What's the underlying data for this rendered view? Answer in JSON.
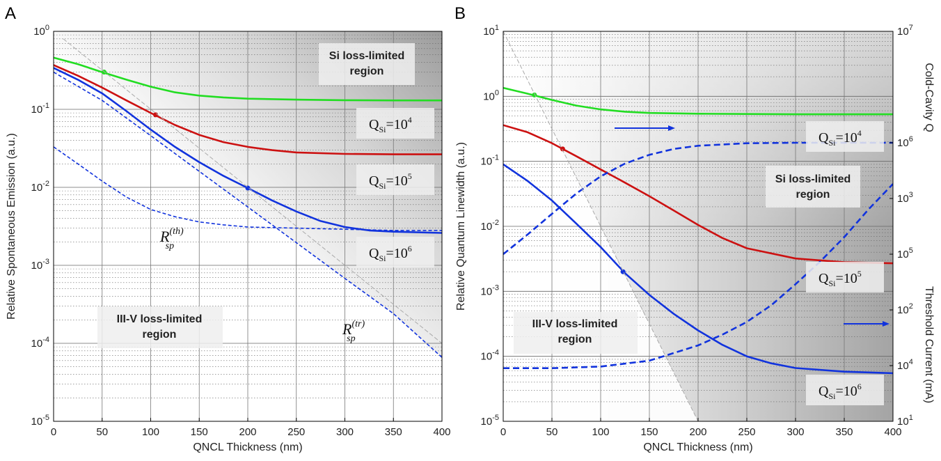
{
  "chart_data": [
    {
      "panel_letter": "A",
      "type": "line",
      "title": "",
      "xlabel": "QNCL Thickness (nm)",
      "ylabel": "Relative Spontaneous Emission (a.u.)",
      "xlim": [
        0,
        400
      ],
      "ylim": [
        1e-05,
        1
      ],
      "yscale": "log",
      "grid": true,
      "xticks": [
        "0",
        "50",
        "100",
        "150",
        "200",
        "250",
        "300",
        "350",
        "400"
      ],
      "yticks": [
        {
          "base": "10",
          "exp": "0"
        },
        {
          "base": "10",
          "exp": "-1"
        },
        {
          "base": "10",
          "exp": "-2"
        },
        {
          "base": "10",
          "exp": "-3"
        },
        {
          "base": "10",
          "exp": "-4"
        },
        {
          "base": "10",
          "exp": "-5"
        }
      ],
      "region_labels": {
        "si": [
          "Si loss-limited",
          "region"
        ],
        "iiiv": [
          "III-V loss-limited",
          "region"
        ]
      },
      "annotations": {
        "q4": {
          "base": "Q",
          "sub": "Si",
          "main": "=10",
          "sup": "4"
        },
        "q5": {
          "base": "Q",
          "sub": "Si",
          "main": "=10",
          "sup": "5"
        },
        "q6": {
          "base": "Q",
          "sub": "Si",
          "main": "=10",
          "sup": "6"
        },
        "rth": {
          "base": "R",
          "sub": "sp",
          "sup": "(th)"
        },
        "rtr": {
          "base": "R",
          "sub": "sp",
          "sup": "(tr)"
        }
      },
      "series": [
        {
          "key": "q4",
          "color": "#22dd22",
          "style": "solid",
          "x": [
            0,
            25,
            50,
            75,
            100,
            125,
            150,
            175,
            200,
            250,
            300,
            350,
            400
          ],
          "y": [
            0.46,
            0.38,
            0.3,
            0.24,
            0.195,
            0.165,
            0.15,
            0.142,
            0.137,
            0.133,
            0.131,
            0.13,
            0.13
          ],
          "marker": [
            52,
            0.3
          ]
        },
        {
          "key": "q5",
          "color": "#cc1111",
          "style": "solid",
          "x": [
            0,
            25,
            50,
            75,
            100,
            125,
            150,
            175,
            200,
            225,
            250,
            300,
            350,
            400
          ],
          "y": [
            0.37,
            0.27,
            0.19,
            0.13,
            0.09,
            0.063,
            0.047,
            0.038,
            0.033,
            0.03,
            0.028,
            0.0268,
            0.0265,
            0.0265
          ],
          "marker": [
            105,
            0.085
          ]
        },
        {
          "key": "q6",
          "color": "#1133dd",
          "style": "solid",
          "x": [
            0,
            25,
            50,
            75,
            100,
            125,
            150,
            175,
            200,
            225,
            250,
            275,
            300,
            325,
            350,
            400
          ],
          "y": [
            0.34,
            0.24,
            0.16,
            0.095,
            0.055,
            0.033,
            0.021,
            0.014,
            0.0098,
            0.0068,
            0.0049,
            0.0037,
            0.0031,
            0.0028,
            0.0027,
            0.0026
          ],
          "marker": [
            200,
            0.0098
          ]
        },
        {
          "key": "rth",
          "color": "#1133dd",
          "style": "dashed",
          "x": [
            0,
            25,
            50,
            75,
            100,
            125,
            150,
            175,
            200,
            250,
            300,
            350,
            400
          ],
          "y": [
            0.033,
            0.02,
            0.012,
            0.0075,
            0.0052,
            0.0042,
            0.0036,
            0.0033,
            0.0031,
            0.003,
            0.0029,
            0.0028,
            0.0028
          ]
        },
        {
          "key": "rtr",
          "color": "#1133dd",
          "style": "dashed",
          "x": [
            0,
            50,
            100,
            150,
            200,
            250,
            300,
            350,
            400
          ],
          "y": [
            0.3,
            0.13,
            0.046,
            0.016,
            0.0056,
            0.00195,
            0.00068,
            0.00024,
            6.6e-05
          ]
        },
        {
          "key": "asym",
          "color": "#aaaaaa",
          "style": "thin-dashed",
          "x": [
            10,
            400
          ],
          "y": [
            0.8,
            0.0001
          ]
        }
      ]
    },
    {
      "panel_letter": "B",
      "type": "line",
      "title": "",
      "xlabel": "QNCL Thickness (nm)",
      "ylabel": "Relative Quantum Linewidth (a.u.)",
      "ylabel_right_top": "Cold-Cavity Q",
      "ylabel_right_bottom": "Threshold Current (mA)",
      "xlim": [
        0,
        400
      ],
      "ylim": [
        1e-05,
        10
      ],
      "yscale": "log",
      "grid": true,
      "xticks": [
        "0",
        "50",
        "100",
        "150",
        "200",
        "250",
        "300",
        "350",
        "400"
      ],
      "yticks": [
        {
          "base": "10",
          "exp": "1"
        },
        {
          "base": "10",
          "exp": "0"
        },
        {
          "base": "10",
          "exp": "-1"
        },
        {
          "base": "10",
          "exp": "-2"
        },
        {
          "base": "10",
          "exp": "-3"
        },
        {
          "base": "10",
          "exp": "-4"
        },
        {
          "base": "10",
          "exp": "-5"
        }
      ],
      "right_ticks_top": [
        {
          "base": "10",
          "exp": "7"
        },
        {
          "base": "10",
          "exp": "6"
        },
        {
          "base": "10",
          "exp": "5"
        },
        {
          "base": "10",
          "exp": "4"
        }
      ],
      "right_ticks_bottom": [
        {
          "base": "10",
          "exp": "3"
        },
        {
          "base": "10",
          "exp": "2"
        },
        {
          "base": "10",
          "exp": "1"
        }
      ],
      "region_labels": {
        "si": [
          "Si loss-limited",
          "region"
        ],
        "iiiv": [
          "III-V loss-limited",
          "region"
        ]
      },
      "annotations": {
        "q4": {
          "base": "Q",
          "sub": "Si",
          "main": "=10",
          "sup": "4"
        },
        "q5": {
          "base": "Q",
          "sub": "Si",
          "main": "=10",
          "sup": "5"
        },
        "q6": {
          "base": "Q",
          "sub": "Si",
          "main": "=10",
          "sup": "6"
        }
      },
      "series": [
        {
          "key": "q4",
          "color": "#22dd22",
          "style": "solid",
          "x": [
            0,
            25,
            50,
            75,
            100,
            125,
            150,
            200,
            250,
            300,
            350,
            400
          ],
          "y": [
            1.35,
            1.1,
            0.88,
            0.72,
            0.63,
            0.58,
            0.555,
            0.54,
            0.535,
            0.53,
            0.53,
            0.53
          ],
          "marker": [
            32,
            1.05
          ]
        },
        {
          "key": "q5",
          "color": "#cc1111",
          "style": "solid",
          "x": [
            0,
            25,
            50,
            75,
            100,
            125,
            150,
            175,
            200,
            225,
            250,
            300,
            350,
            400
          ],
          "y": [
            0.36,
            0.28,
            0.19,
            0.12,
            0.075,
            0.047,
            0.029,
            0.0175,
            0.0105,
            0.0066,
            0.0046,
            0.0032,
            0.0028,
            0.0027
          ],
          "marker": [
            61,
            0.155
          ]
        },
        {
          "key": "q6",
          "color": "#1133dd",
          "style": "solid",
          "x": [
            0,
            25,
            50,
            75,
            100,
            125,
            150,
            175,
            200,
            225,
            250,
            275,
            300,
            350,
            400
          ],
          "y": [
            0.09,
            0.05,
            0.025,
            0.011,
            0.0048,
            0.0019,
            0.00088,
            0.00045,
            0.00025,
            0.00015,
            0.0001,
            7.8e-05,
            6.6e-05,
            5.8e-05,
            5.5e-05
          ],
          "marker": [
            123,
            0.002
          ]
        },
        {
          "key": "coldq",
          "axis": "right",
          "color": "#1133dd",
          "style": "dashed",
          "x": [
            0,
            25,
            50,
            75,
            100,
            125,
            150,
            175,
            200,
            250,
            300,
            350,
            400
          ],
          "y": [
            100000,
            150000,
            230000,
            350000,
            500000,
            650000,
            780000,
            880000,
            940000,
            990000,
            1000000,
            1000000,
            1000000
          ]
        },
        {
          "key": "ith",
          "axis": "right",
          "color": "#1133dd",
          "style": "dashed",
          "x": [
            0,
            50,
            100,
            150,
            200,
            225,
            250,
            275,
            300,
            325,
            350,
            375,
            400
          ],
          "y": [
            30,
            30,
            31,
            35,
            48,
            60,
            78,
            110,
            170,
            270,
            450,
            800,
            1350
          ]
        },
        {
          "key": "asym",
          "color": "#aaaaaa",
          "style": "thin-dashed",
          "x": [
            0,
            200
          ],
          "y": [
            10,
            1e-05
          ]
        }
      ]
    }
  ]
}
